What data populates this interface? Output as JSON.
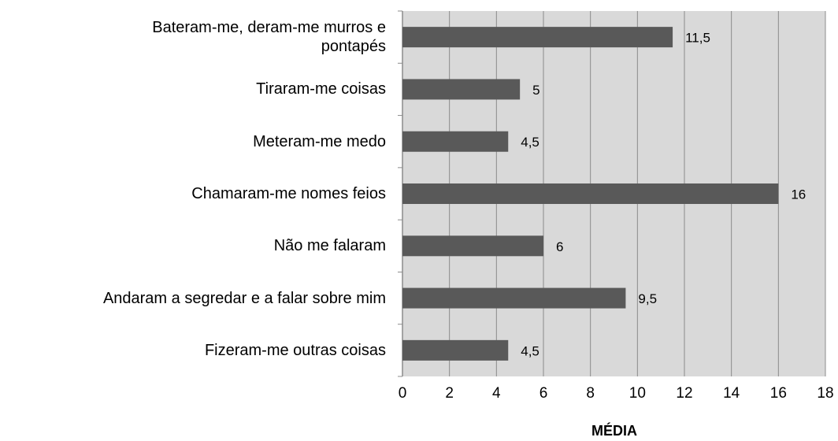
{
  "chart_data": {
    "type": "bar",
    "orientation": "horizontal",
    "categories": [
      "Bateram-me, deram-me murros e\npontapés",
      "Tiraram-me coisas",
      "Meteram-me medo",
      "Chamaram-me nomes feios",
      "Não me falaram",
      "Andaram a segredar e a falar sobre mim",
      "Fizeram-me outras coisas"
    ],
    "values": [
      11.5,
      5,
      4.5,
      16,
      6,
      9.5,
      4.5
    ],
    "value_labels": [
      "11,5",
      "5",
      "4,5",
      "16",
      "6",
      "9,5",
      "4,5"
    ],
    "color": "#595959",
    "xlim": [
      0,
      18
    ],
    "xticks": [
      0,
      2,
      4,
      6,
      8,
      10,
      12,
      14,
      16,
      18
    ],
    "grid": true,
    "xlabel": "MÉDIA"
  }
}
